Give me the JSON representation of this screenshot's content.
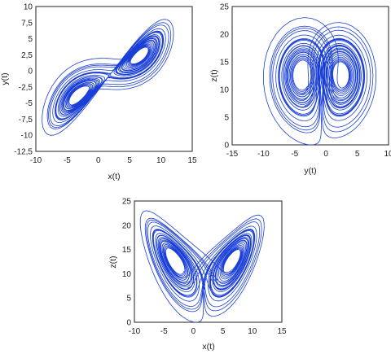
{
  "chart_data": [
    {
      "type": "line",
      "xlabel": "x(t)",
      "ylabel": "y(t)",
      "xlim": [
        -10,
        15
      ],
      "ylim": [
        -12.5,
        10
      ],
      "xticks": [
        "-10",
        "-5",
        "0",
        "5",
        "10",
        "15"
      ],
      "yticks": [
        "10",
        "7,5",
        "5",
        "2,5",
        "0",
        "-2,5",
        "-5",
        "-7,5",
        "-10",
        "-12,5"
      ],
      "series": [
        {
          "projection": "x-y",
          "x_range": [
            -9,
            12
          ],
          "y_range": [
            -10,
            8
          ]
        }
      ]
    },
    {
      "type": "line",
      "xlabel": "y(t)",
      "ylabel": "z(t)",
      "xlim": [
        -15,
        10
      ],
      "ylim": [
        0,
        25
      ],
      "xticks": [
        "-15",
        "-10",
        "-5",
        "0",
        "5",
        "10"
      ],
      "yticks": [
        "25",
        "20",
        "15",
        "10",
        "5",
        "0"
      ],
      "series": [
        {
          "projection": "y-z",
          "x_range": [
            -10.5,
            8
          ],
          "y_range": [
            0,
            23
          ]
        }
      ]
    },
    {
      "type": "line",
      "xlabel": "x(t)",
      "ylabel": "z(t)",
      "xlim": [
        -10,
        15
      ],
      "ylim": [
        0,
        25
      ],
      "xticks": [
        "-10",
        "-5",
        "0",
        "5",
        "10",
        "15"
      ],
      "yticks": [
        "25",
        "20",
        "15",
        "10",
        "5",
        "0"
      ],
      "series": [
        {
          "projection": "x-z",
          "x_range": [
            -9,
            12
          ],
          "y_range": [
            0,
            23
          ]
        }
      ]
    }
  ],
  "colors": {
    "curve": "#1a3fd6"
  }
}
